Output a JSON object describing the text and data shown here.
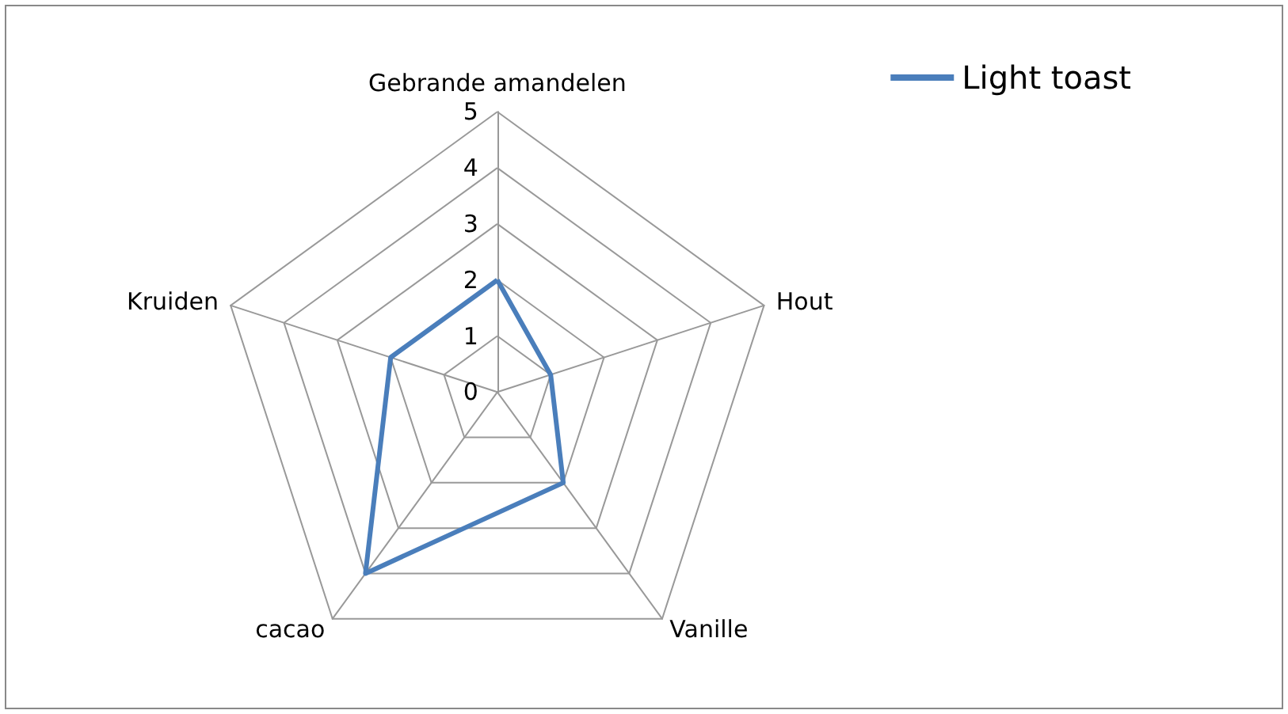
{
  "chart_data": {
    "type": "radar",
    "categories": [
      "Gebrande amandelen",
      "Hout",
      "Vanille",
      "cacao",
      "Kruiden"
    ],
    "series": [
      {
        "name": "Light toast",
        "color": "#4a7ebb",
        "values": [
          2,
          1,
          2,
          4,
          2
        ]
      }
    ],
    "ylim": [
      0,
      5
    ],
    "yticks": [
      0,
      1,
      2,
      3,
      4,
      5
    ],
    "grid": true,
    "legend": "top right",
    "marker": "none",
    "line_style": "solid"
  }
}
